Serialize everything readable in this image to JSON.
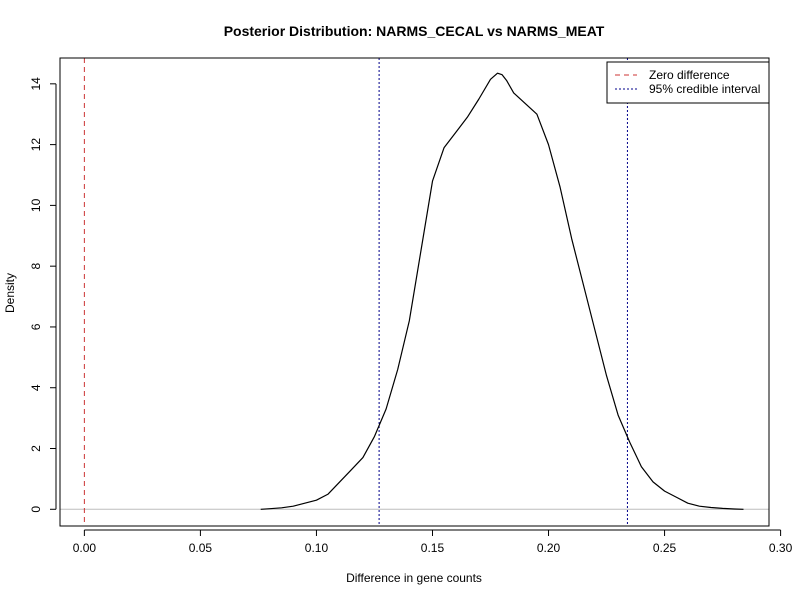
{
  "chart_data": {
    "type": "line",
    "title": "Posterior Distribution: NARMS_CECAL vs NARMS_MEAT",
    "xlabel": "Difference in gene counts",
    "ylabel": "Density",
    "xlim": [
      -0.0105,
      0.295
    ],
    "ylim": [
      -0.55,
      14.85
    ],
    "xticks": [
      0.0,
      0.05,
      0.1,
      0.15,
      0.2,
      0.25,
      0.3
    ],
    "xtick_labels": [
      "0.00",
      "0.05",
      "0.10",
      "0.15",
      "0.20",
      "0.25",
      "0.30"
    ],
    "yticks": [
      0,
      2,
      4,
      6,
      8,
      10,
      12,
      14
    ],
    "ytick_labels": [
      "0",
      "2",
      "4",
      "6",
      "8",
      "10",
      "12",
      "14"
    ],
    "grid": false,
    "legend_position": "top-right",
    "series": [
      {
        "color": "#000000",
        "style": "solid",
        "x": [
          0.076,
          0.08,
          0.085,
          0.09,
          0.095,
          0.1,
          0.105,
          0.11,
          0.115,
          0.12,
          0.125,
          0.13,
          0.135,
          0.14,
          0.145,
          0.15,
          0.155,
          0.16,
          0.165,
          0.17,
          0.175,
          0.178,
          0.18,
          0.182,
          0.185,
          0.19,
          0.195,
          0.2,
          0.205,
          0.21,
          0.215,
          0.22,
          0.225,
          0.23,
          0.235,
          0.24,
          0.245,
          0.25,
          0.255,
          0.26,
          0.265,
          0.27,
          0.275,
          0.28,
          0.284
        ],
        "y": [
          0.0,
          0.02,
          0.05,
          0.1,
          0.2,
          0.3,
          0.5,
          0.9,
          1.3,
          1.7,
          2.4,
          3.3,
          4.6,
          6.2,
          8.5,
          10.8,
          11.9,
          12.4,
          12.9,
          13.5,
          14.15,
          14.35,
          14.3,
          14.1,
          13.7,
          13.35,
          13.0,
          12.0,
          10.6,
          8.9,
          7.4,
          5.9,
          4.4,
          3.1,
          2.2,
          1.4,
          0.9,
          0.6,
          0.4,
          0.2,
          0.1,
          0.06,
          0.03,
          0.01,
          0.0
        ]
      }
    ],
    "reference_lines": [
      {
        "name": "Zero difference",
        "x": 0.0,
        "color": "#cc3333",
        "dash": "dashed"
      },
      {
        "name": "95% credible interval",
        "x": 0.127,
        "color": "#00008b",
        "dash": "dotted"
      },
      {
        "name": "95% credible interval",
        "x": 0.234,
        "color": "#00008b",
        "dash": "dotted"
      }
    ],
    "baseline": {
      "y": 0,
      "color": "#bebebe"
    }
  }
}
